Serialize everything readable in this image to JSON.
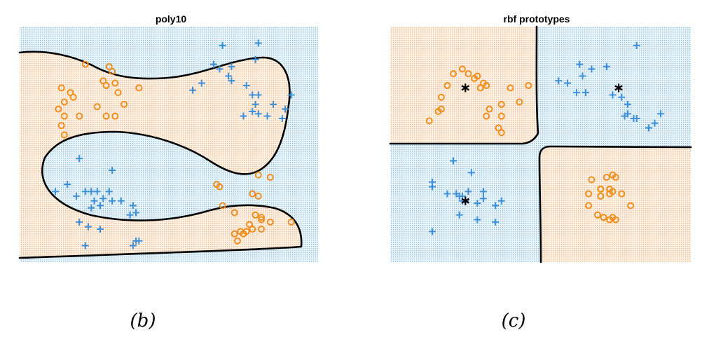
{
  "colors": {
    "orange": "#f28e1c",
    "blue": "#3b8fd9",
    "orange_region": "#fbe6d2",
    "blue_region": "#cfe6f2",
    "boundary": "#000000",
    "prototype": "#000000"
  },
  "captions": [
    "(b)",
    "(c)"
  ],
  "chart_data": [
    {
      "type": "scatter",
      "title": "poly10",
      "xlabel": "",
      "ylabel": "",
      "xlim": [
        0,
        1
      ],
      "ylim": [
        0,
        1
      ],
      "grid": false,
      "background": "dotted decision regions",
      "series": [
        {
          "marker": "o",
          "color": "#f28e1c",
          "x": [
            0.22,
            0.3,
            0.31,
            0.28,
            0.29,
            0.32,
            0.14,
            0.17,
            0.18,
            0.15,
            0.13,
            0.15,
            0.14,
            0.26,
            0.33,
            0.35,
            0.32,
            0.4,
            0.29,
            0.2,
            0.15,
            0.66,
            0.8,
            0.84,
            0.78,
            0.8,
            0.67,
            0.68,
            0.72,
            0.81,
            0.79,
            0.81,
            0.77,
            0.78,
            0.81,
            0.84,
            0.91,
            0.76,
            0.74,
            0.72,
            0.75,
            0.73
          ],
          "y": [
            0.84,
            0.83,
            0.81,
            0.77,
            0.75,
            0.76,
            0.74,
            0.72,
            0.7,
            0.68,
            0.65,
            0.62,
            0.58,
            0.66,
            0.72,
            0.67,
            0.62,
            0.74,
            0.62,
            0.62,
            0.54,
            0.33,
            0.37,
            0.36,
            0.29,
            0.28,
            0.32,
            0.24,
            0.21,
            0.19,
            0.2,
            0.18,
            0.16,
            0.14,
            0.14,
            0.17,
            0.17,
            0.13,
            0.13,
            0.12,
            0.12,
            0.09
          ]
        },
        {
          "marker": "+",
          "color": "#3b8fd9",
          "x": [
            0.68,
            0.8,
            0.79,
            0.71,
            0.67,
            0.65,
            0.61,
            0.58,
            0.7,
            0.71,
            0.76,
            0.78,
            0.79,
            0.85,
            0.75,
            0.78,
            0.83,
            0.8,
            0.89,
            0.91,
            0.8,
            0.88,
            0.2,
            0.31,
            0.16,
            0.12,
            0.19,
            0.22,
            0.24,
            0.26,
            0.28,
            0.25,
            0.24,
            0.27,
            0.3,
            0.31,
            0.34,
            0.38,
            0.39,
            0.37,
            0.2,
            0.23,
            0.27,
            0.39,
            0.4,
            0.38,
            0.22
          ],
          "y": [
            0.92,
            0.93,
            0.86,
            0.83,
            0.82,
            0.84,
            0.76,
            0.73,
            0.79,
            0.77,
            0.75,
            0.71,
            0.67,
            0.67,
            0.62,
            0.64,
            0.62,
            0.63,
            0.65,
            0.71,
            0.71,
            0.61,
            0.44,
            0.39,
            0.33,
            0.3,
            0.28,
            0.3,
            0.3,
            0.3,
            0.27,
            0.26,
            0.23,
            0.24,
            0.3,
            0.26,
            0.26,
            0.24,
            0.21,
            0.2,
            0.17,
            0.15,
            0.14,
            0.09,
            0.09,
            0.07,
            0.07
          ]
        }
      ]
    },
    {
      "type": "scatter",
      "title": "rbf prototypes",
      "xlabel": "",
      "ylabel": "",
      "xlim": [
        0,
        1
      ],
      "ylim": [
        0,
        1
      ],
      "grid": false,
      "background": "dotted decision regions",
      "series": [
        {
          "marker": "o",
          "color": "#f28e1c",
          "x": [
            0.24,
            0.28,
            0.32,
            0.3,
            0.31,
            0.29,
            0.26,
            0.21,
            0.19,
            0.17,
            0.17,
            0.16,
            0.13,
            0.32,
            0.33,
            0.37,
            0.36,
            0.37,
            0.4,
            0.46,
            0.43,
            0.37,
            0.67,
            0.72,
            0.74,
            0.75,
            0.7,
            0.73,
            0.7,
            0.74,
            0.77,
            0.8,
            0.73,
            0.66,
            0.66,
            0.69,
            0.71,
            0.74,
            0.75,
            0.73,
            0.71
          ],
          "y": [
            0.82,
            0.78,
            0.75,
            0.74,
            0.76,
            0.79,
            0.8,
            0.8,
            0.75,
            0.7,
            0.65,
            0.64,
            0.6,
            0.62,
            0.65,
            0.62,
            0.57,
            0.67,
            0.74,
            0.75,
            0.68,
            0.55,
            0.35,
            0.36,
            0.37,
            0.36,
            0.31,
            0.31,
            0.28,
            0.3,
            0.29,
            0.24,
            0.29,
            0.24,
            0.29,
            0.2,
            0.19,
            0.19,
            0.18,
            0.18,
            0.19
          ]
        },
        {
          "marker": "+",
          "color": "#3b8fd9",
          "x": [
            0.82,
            0.72,
            0.67,
            0.63,
            0.64,
            0.59,
            0.56,
            0.62,
            0.65,
            0.74,
            0.77,
            0.79,
            0.78,
            0.9,
            0.79,
            0.88,
            0.82,
            0.81,
            0.86,
            0.21,
            0.27,
            0.14,
            0.14,
            0.19,
            0.22,
            0.23,
            0.24,
            0.26,
            0.31,
            0.25,
            0.24,
            0.29,
            0.31,
            0.37,
            0.35,
            0.23,
            0.29,
            0.35,
            0.14
          ],
          "y": [
            0.92,
            0.83,
            0.82,
            0.84,
            0.79,
            0.76,
            0.77,
            0.72,
            0.72,
            0.71,
            0.7,
            0.63,
            0.62,
            0.63,
            0.67,
            0.59,
            0.61,
            0.61,
            0.57,
            0.43,
            0.38,
            0.34,
            0.32,
            0.29,
            0.29,
            0.28,
            0.28,
            0.3,
            0.3,
            0.26,
            0.26,
            0.25,
            0.27,
            0.26,
            0.24,
            0.2,
            0.18,
            0.17,
            0.13
          ]
        },
        {
          "marker": "*",
          "color": "#000000",
          "label": "prototypes",
          "x": [
            0.25,
            0.76,
            0.25
          ],
          "y": [
            0.74,
            0.74,
            0.26
          ]
        }
      ]
    }
  ]
}
